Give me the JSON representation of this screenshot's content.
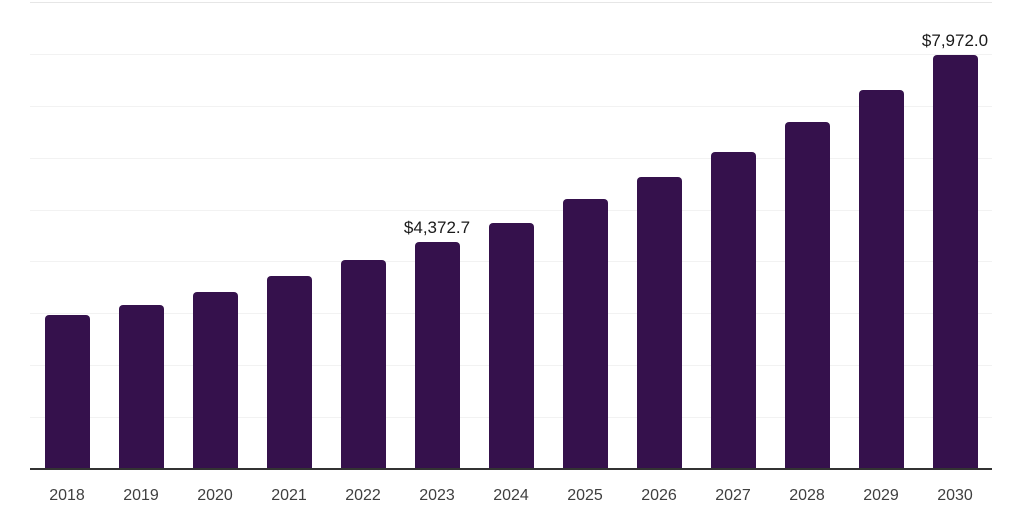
{
  "chart_data": {
    "type": "bar",
    "categories": [
      "2018",
      "2019",
      "2020",
      "2021",
      "2022",
      "2023",
      "2024",
      "2025",
      "2026",
      "2027",
      "2028",
      "2029",
      "2030"
    ],
    "values": [
      2965,
      3160,
      3410,
      3715,
      4035,
      4372.7,
      4740,
      5195,
      5635,
      6115,
      6690,
      7300,
      7972
    ],
    "value_labels": [
      {
        "category": "2023",
        "label": "$4,372.7"
      },
      {
        "category": "2030",
        "label": "$7,972.0"
      }
    ],
    "ylim": [
      0,
      9000
    ],
    "grid_interval": 1000,
    "grid": "horizontal",
    "legend": "none",
    "y_axis_tick_labels": "none",
    "colors": {
      "bar": "#35114C",
      "axis_line": "#333333",
      "gridline": "#f2f2f2",
      "gridline_top": "#e6e6e6",
      "tick_label": "#3f3f3f",
      "data_label": "#1a1a1a",
      "background": "#ffffff"
    }
  }
}
